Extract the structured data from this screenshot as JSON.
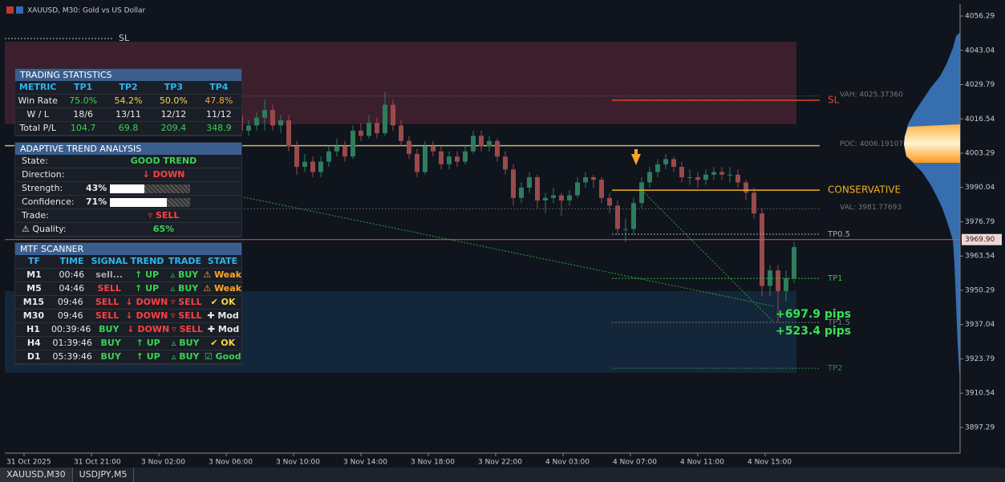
{
  "header": {
    "title": "XAUUSD, M30: Gold vs US Dollar"
  },
  "price_axis": {
    "ylim": [
      3887.37,
      4060.94
    ],
    "yticks": [
      4056.29,
      4043.04,
      4029.79,
      4016.54,
      4003.29,
      3990.04,
      3976.79,
      3963.54,
      3950.29,
      3937.04,
      3923.79,
      3910.54,
      3897.29
    ],
    "current": {
      "value": 3969.9,
      "label": "3969.90"
    }
  },
  "time_axis": {
    "labels": [
      "31 Oct 2025",
      "31 Oct 21:00",
      "3 Nov 02:00",
      "3 Nov 06:00",
      "3 Nov 10:00",
      "3 Nov 14:00",
      "3 Nov 18:00",
      "3 Nov 22:00",
      "4 Nov 03:00",
      "4 Nov 07:00",
      "4 Nov 11:00",
      "4 Nov 15:00"
    ]
  },
  "bull_color": "#2f7d5c",
  "bear_color": "#9a4a4a",
  "candles": [
    [
      4018,
      4020,
      4010,
      4012
    ],
    [
      4012,
      4016,
      4010,
      4014
    ],
    [
      4014,
      4019,
      4012,
      4017
    ],
    [
      4017,
      4024,
      4012,
      4020
    ],
    [
      4020,
      4022,
      4012,
      4014
    ],
    [
      4014,
      4018,
      4011,
      4016
    ],
    [
      4016,
      4018,
      4004,
      4006
    ],
    [
      4006,
      4008,
      3995,
      3998
    ],
    [
      3998,
      4003,
      3996,
      4000
    ],
    [
      4000,
      4002,
      3994,
      3996
    ],
    [
      3996,
      4002,
      3994,
      4000
    ],
    [
      4000,
      4006,
      3998,
      4004
    ],
    [
      4004,
      4009,
      4002,
      4006
    ],
    [
      4006,
      4008,
      4000,
      4002
    ],
    [
      4002,
      4014,
      4001,
      4012
    ],
    [
      4012,
      4015,
      4008,
      4010
    ],
    [
      4010,
      4018,
      4009,
      4015
    ],
    [
      4015,
      4017,
      4009,
      4011
    ],
    [
      4011,
      4027,
      4010,
      4022
    ],
    [
      4022,
      4024,
      4012,
      4014
    ],
    [
      4014,
      4016,
      4006,
      4008
    ],
    [
      4008,
      4010,
      4001,
      4003
    ],
    [
      4003,
      4005,
      3994,
      3996
    ],
    [
      3996,
      4008,
      3995,
      4006
    ],
    [
      4006,
      4008,
      4002,
      4004
    ],
    [
      4004,
      4006,
      3997,
      3999
    ],
    [
      3999,
      4004,
      3997,
      4002
    ],
    [
      4002,
      4004,
      3998,
      4000
    ],
    [
      4000,
      4006,
      3999,
      4004
    ],
    [
      4004,
      4012,
      4003,
      4010
    ],
    [
      4010,
      4012,
      4004,
      4006
    ],
    [
      4006,
      4010,
      4004,
      4008
    ],
    [
      4008,
      4009,
      4000,
      4002
    ],
    [
      4002,
      4004,
      3995,
      3997
    ],
    [
      3997,
      3999,
      3983,
      3986
    ],
    [
      3986,
      3992,
      3984,
      3990
    ],
    [
      3990,
      3996,
      3988,
      3994
    ],
    [
      3994,
      3995,
      3982,
      3985
    ],
    [
      3985,
      3988,
      3980,
      3986
    ],
    [
      3986,
      3990,
      3984,
      3987
    ],
    [
      3987,
      3988,
      3979,
      3985
    ],
    [
      3985,
      3989,
      3983,
      3987
    ],
    [
      3987,
      3994,
      3986,
      3992
    ],
    [
      3992,
      3996,
      3990,
      3994
    ],
    [
      3994,
      3995,
      3990,
      3993
    ],
    [
      3993,
      3994,
      3984,
      3986
    ],
    [
      3986,
      3988,
      3980,
      3983
    ],
    [
      3983,
      3985,
      3972,
      3974
    ],
    [
      3974,
      3978,
      3969,
      3974
    ],
    [
      3974,
      3986,
      3972,
      3984
    ],
    [
      3984,
      3994,
      3982,
      3992
    ],
    [
      3992,
      3998,
      3990,
      3996
    ],
    [
      3996,
      4001,
      3994,
      3999
    ],
    [
      3999,
      4003,
      3997,
      4001
    ],
    [
      4001,
      4002,
      3996,
      3998
    ],
    [
      3998,
      4000,
      3992,
      3994
    ],
    [
      3994,
      3997,
      3991,
      3994
    ],
    [
      3994,
      3996,
      3990,
      3993
    ],
    [
      3993,
      3997,
      3991,
      3995
    ],
    [
      3995,
      3998,
      3993,
      3996
    ],
    [
      3996,
      3998,
      3993,
      3995
    ],
    [
      3995,
      3998,
      3992,
      3995
    ],
    [
      3995,
      3997,
      3990,
      3992
    ],
    [
      3992,
      3993,
      3985,
      3988
    ],
    [
      3988,
      3990,
      3978,
      3980
    ],
    [
      3980,
      3982,
      3948,
      3952
    ],
    [
      3952,
      3960,
      3948,
      3958
    ],
    [
      3958,
      3960,
      3938,
      3950
    ],
    [
      3950,
      3958,
      3946,
      3955
    ],
    [
      3955,
      3969,
      3953,
      3967
    ]
  ],
  "zones": [
    {
      "from": 4046.4,
      "to": 4014.5,
      "color": "#3b1f2d"
    },
    {
      "from": 3950,
      "to": 3918.4,
      "color": "#14263a"
    }
  ],
  "stop_marker": {
    "label": "SL",
    "price": 4047.6
  },
  "profile": {
    "vah": {
      "value": 4025.3736,
      "label": "VAH: 4025.37360"
    },
    "poc": {
      "value": 4006.19107,
      "label": "POC: 4006.19107"
    },
    "val": {
      "value": 3981.77693,
      "label": "VAL: 3981.77693"
    }
  },
  "trade_levels": [
    {
      "label": "SL",
      "price": 4023.75,
      "color": "#e0442c"
    },
    {
      "label": "CONSERVATIVE",
      "price": 3989.0,
      "color": "#f0b020"
    },
    {
      "label": "TP0.5",
      "price": 3972,
      "color": "#aaaaaa"
    },
    {
      "label": "TP1",
      "price": 3954.9,
      "color": "#30c040"
    },
    {
      "label": "TP1.5",
      "price": 3937.9,
      "color": "#777777"
    },
    {
      "label": "TP2",
      "price": 3920.2,
      "color": "#2a8a3a"
    }
  ],
  "pips": [
    "+697.9 pips",
    "+523.4 pips"
  ],
  "trading_statistics": {
    "title": "TRADING STATISTICS",
    "columns": [
      "METRIC",
      "TP1",
      "TP2",
      "TP3",
      "TP4"
    ],
    "rows": [
      [
        "Win Rate",
        "75.0%",
        "54.2%",
        "50.0%",
        "47.8%"
      ],
      [
        "W / L",
        "18/6",
        "13/11",
        "12/12",
        "11/12"
      ],
      [
        "Total P/L",
        "104.7",
        "69.8",
        "209.4",
        "348.9"
      ]
    ]
  },
  "trend_analysis": {
    "title": "ADAPTIVE TREND ANALYSIS",
    "state": {
      "label": "State:",
      "value": "GOOD TREND"
    },
    "direction": {
      "label": "Direction:",
      "value": "↓ DOWN"
    },
    "strength": {
      "label": "Strength:",
      "value": 43,
      "text": "43%"
    },
    "confidence": {
      "label": "Confidence:",
      "value": 71,
      "text": "71%"
    },
    "trade": {
      "label": "Trade:",
      "value": "▿ SELL"
    },
    "quality": {
      "label": "⚠ Quality:",
      "value": "65%"
    }
  },
  "mtf_scanner": {
    "title": "MTF SCANNER",
    "columns": [
      "TF",
      "TIME",
      "SIGNAL",
      "TREND",
      "TRADE",
      "STATE"
    ],
    "rows": [
      [
        "M1",
        "00:46",
        "sell...",
        "↑ UP",
        "▵ BUY",
        "⚠ Weak"
      ],
      [
        "M5",
        "04:46",
        "SELL",
        "↑ UP",
        "▵ BUY",
        "⚠ Weak"
      ],
      [
        "M15",
        "09:46",
        "SELL",
        "↓ DOWN",
        "▿ SELL",
        "✔ OK"
      ],
      [
        "M30",
        "09:46",
        "SELL",
        "↓ DOWN",
        "▿ SELL",
        "✚ Mod"
      ],
      [
        "H1",
        "00:39:46",
        "BUY",
        "↓ DOWN",
        "▿ SELL",
        "✚ Mod"
      ],
      [
        "H4",
        "01:39:46",
        "BUY",
        "↑ UP",
        "▵ BUY",
        "✔ OK"
      ],
      [
        "D1",
        "05:39:46",
        "BUY",
        "↑ UP",
        "▵ BUY",
        "☑ Good"
      ]
    ]
  },
  "tabs": [
    "XAUUSD,M30",
    "USDJPY,M5"
  ]
}
